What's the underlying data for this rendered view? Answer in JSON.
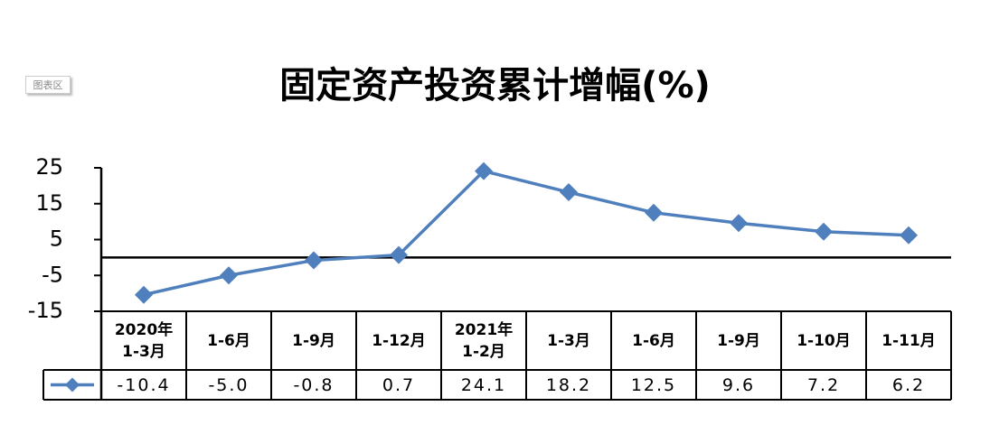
{
  "ui": {
    "chart_area_tag": "图表区"
  },
  "chart_data": {
    "type": "line",
    "title": "固定资产投资累计增幅(%)",
    "categories": [
      "2020年\n1-3月",
      "1-6月",
      "1-9月",
      "1-12月",
      "2021年\n1-2月",
      "1-3月",
      "1-6月",
      "1-9月",
      "1-10月",
      "1-11月"
    ],
    "series": [
      {
        "color": "#4f7fbc",
        "values": [
          -10.4,
          -5.0,
          -0.8,
          0.7,
          24.1,
          18.2,
          12.5,
          9.6,
          7.2,
          6.2
        ],
        "value_labels": [
          "-10.4",
          "-5.0",
          "-0.8",
          "0.7",
          "24.1",
          "18.2",
          "12.5",
          "9.6",
          "7.2",
          "6.2"
        ]
      }
    ],
    "ylim": [
      -15,
      25
    ],
    "yticks": [
      25,
      15,
      5,
      -5,
      -15
    ]
  }
}
